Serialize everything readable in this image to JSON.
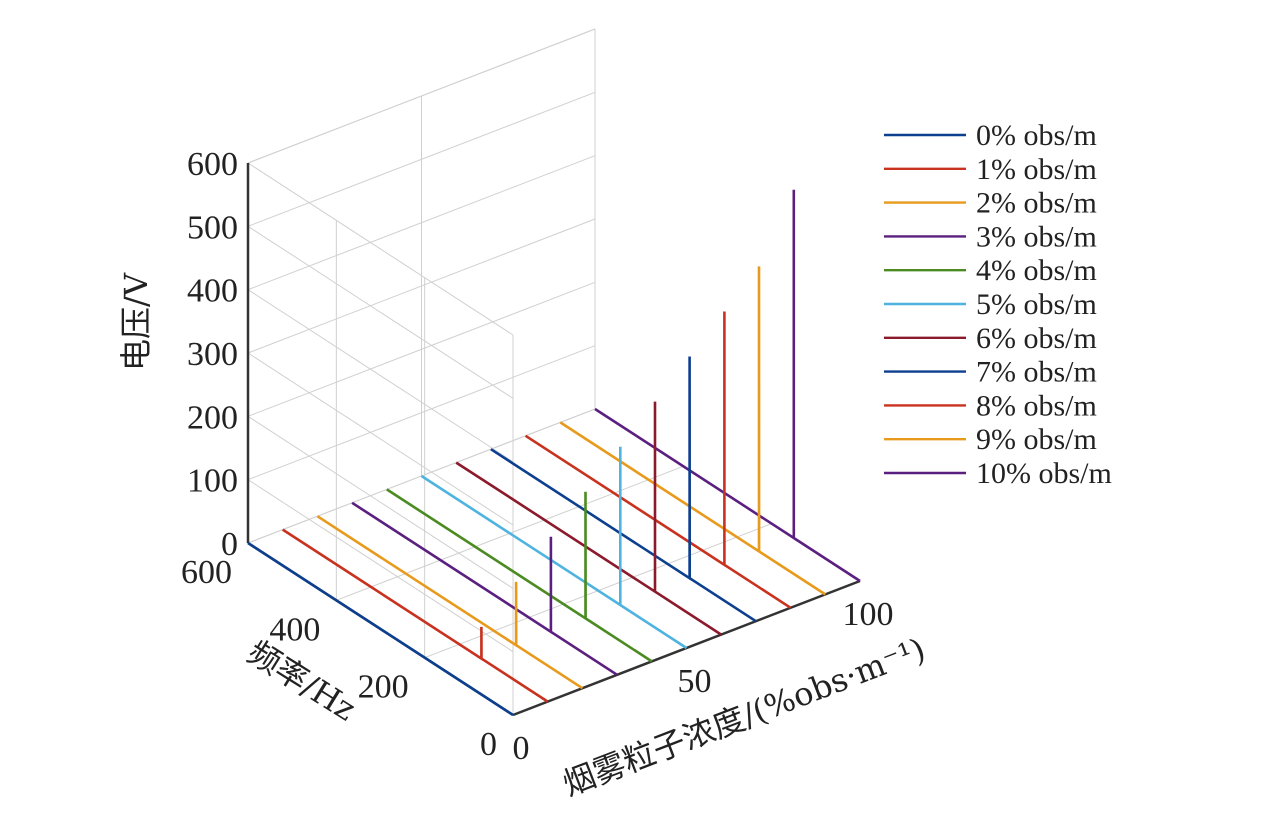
{
  "chart_data": {
    "type": "line",
    "projection": "3d-waterfall",
    "title": "",
    "xlabel": "频率/Hz",
    "ylabel": "烟雾粒子浓度/(%obs·m⁻¹)",
    "zlabel": "电压/V",
    "xlim": [
      0,
      600
    ],
    "ylim": [
      0,
      100
    ],
    "zlim": [
      0,
      600
    ],
    "x_ticks": [
      "0",
      "200",
      "400",
      "600"
    ],
    "y_ticks": [
      "0",
      "50",
      "100"
    ],
    "z_ticks": [
      "0",
      "100",
      "200",
      "300",
      "400",
      "500",
      "600"
    ],
    "grid": true,
    "legend_position": "right",
    "series": [
      {
        "name": "0% obs/m",
        "color": "#0d3f8f",
        "concentration": 0,
        "peak_frequency": 150,
        "peak_voltage": 0
      },
      {
        "name": "1% obs/m",
        "color": "#c8321e",
        "concentration": 10,
        "peak_frequency": 150,
        "peak_voltage": 50
      },
      {
        "name": "2% obs/m",
        "color": "#e89a1c",
        "concentration": 20,
        "peak_frequency": 150,
        "peak_voltage": 100
      },
      {
        "name": "3% obs/m",
        "color": "#5b1f80",
        "concentration": 30,
        "peak_frequency": 150,
        "peak_voltage": 150
      },
      {
        "name": "4% obs/m",
        "color": "#4b8b22",
        "concentration": 40,
        "peak_frequency": 150,
        "peak_voltage": 200
      },
      {
        "name": "5% obs/m",
        "color": "#4fb3e0",
        "concentration": 50,
        "peak_frequency": 150,
        "peak_voltage": 250
      },
      {
        "name": "6% obs/m",
        "color": "#8b1a2c",
        "concentration": 60,
        "peak_frequency": 150,
        "peak_voltage": 300
      },
      {
        "name": "7% obs/m",
        "color": "#0d3f8f",
        "concentration": 70,
        "peak_frequency": 150,
        "peak_voltage": 350
      },
      {
        "name": "8% obs/m",
        "color": "#c8321e",
        "concentration": 80,
        "peak_frequency": 150,
        "peak_voltage": 400
      },
      {
        "name": "9% obs/m",
        "color": "#e89a1c",
        "concentration": 90,
        "peak_frequency": 150,
        "peak_voltage": 450
      },
      {
        "name": "10% obs/m",
        "color": "#5b1f80",
        "concentration": 100,
        "peak_frequency": 150,
        "peak_voltage": 550
      }
    ]
  }
}
